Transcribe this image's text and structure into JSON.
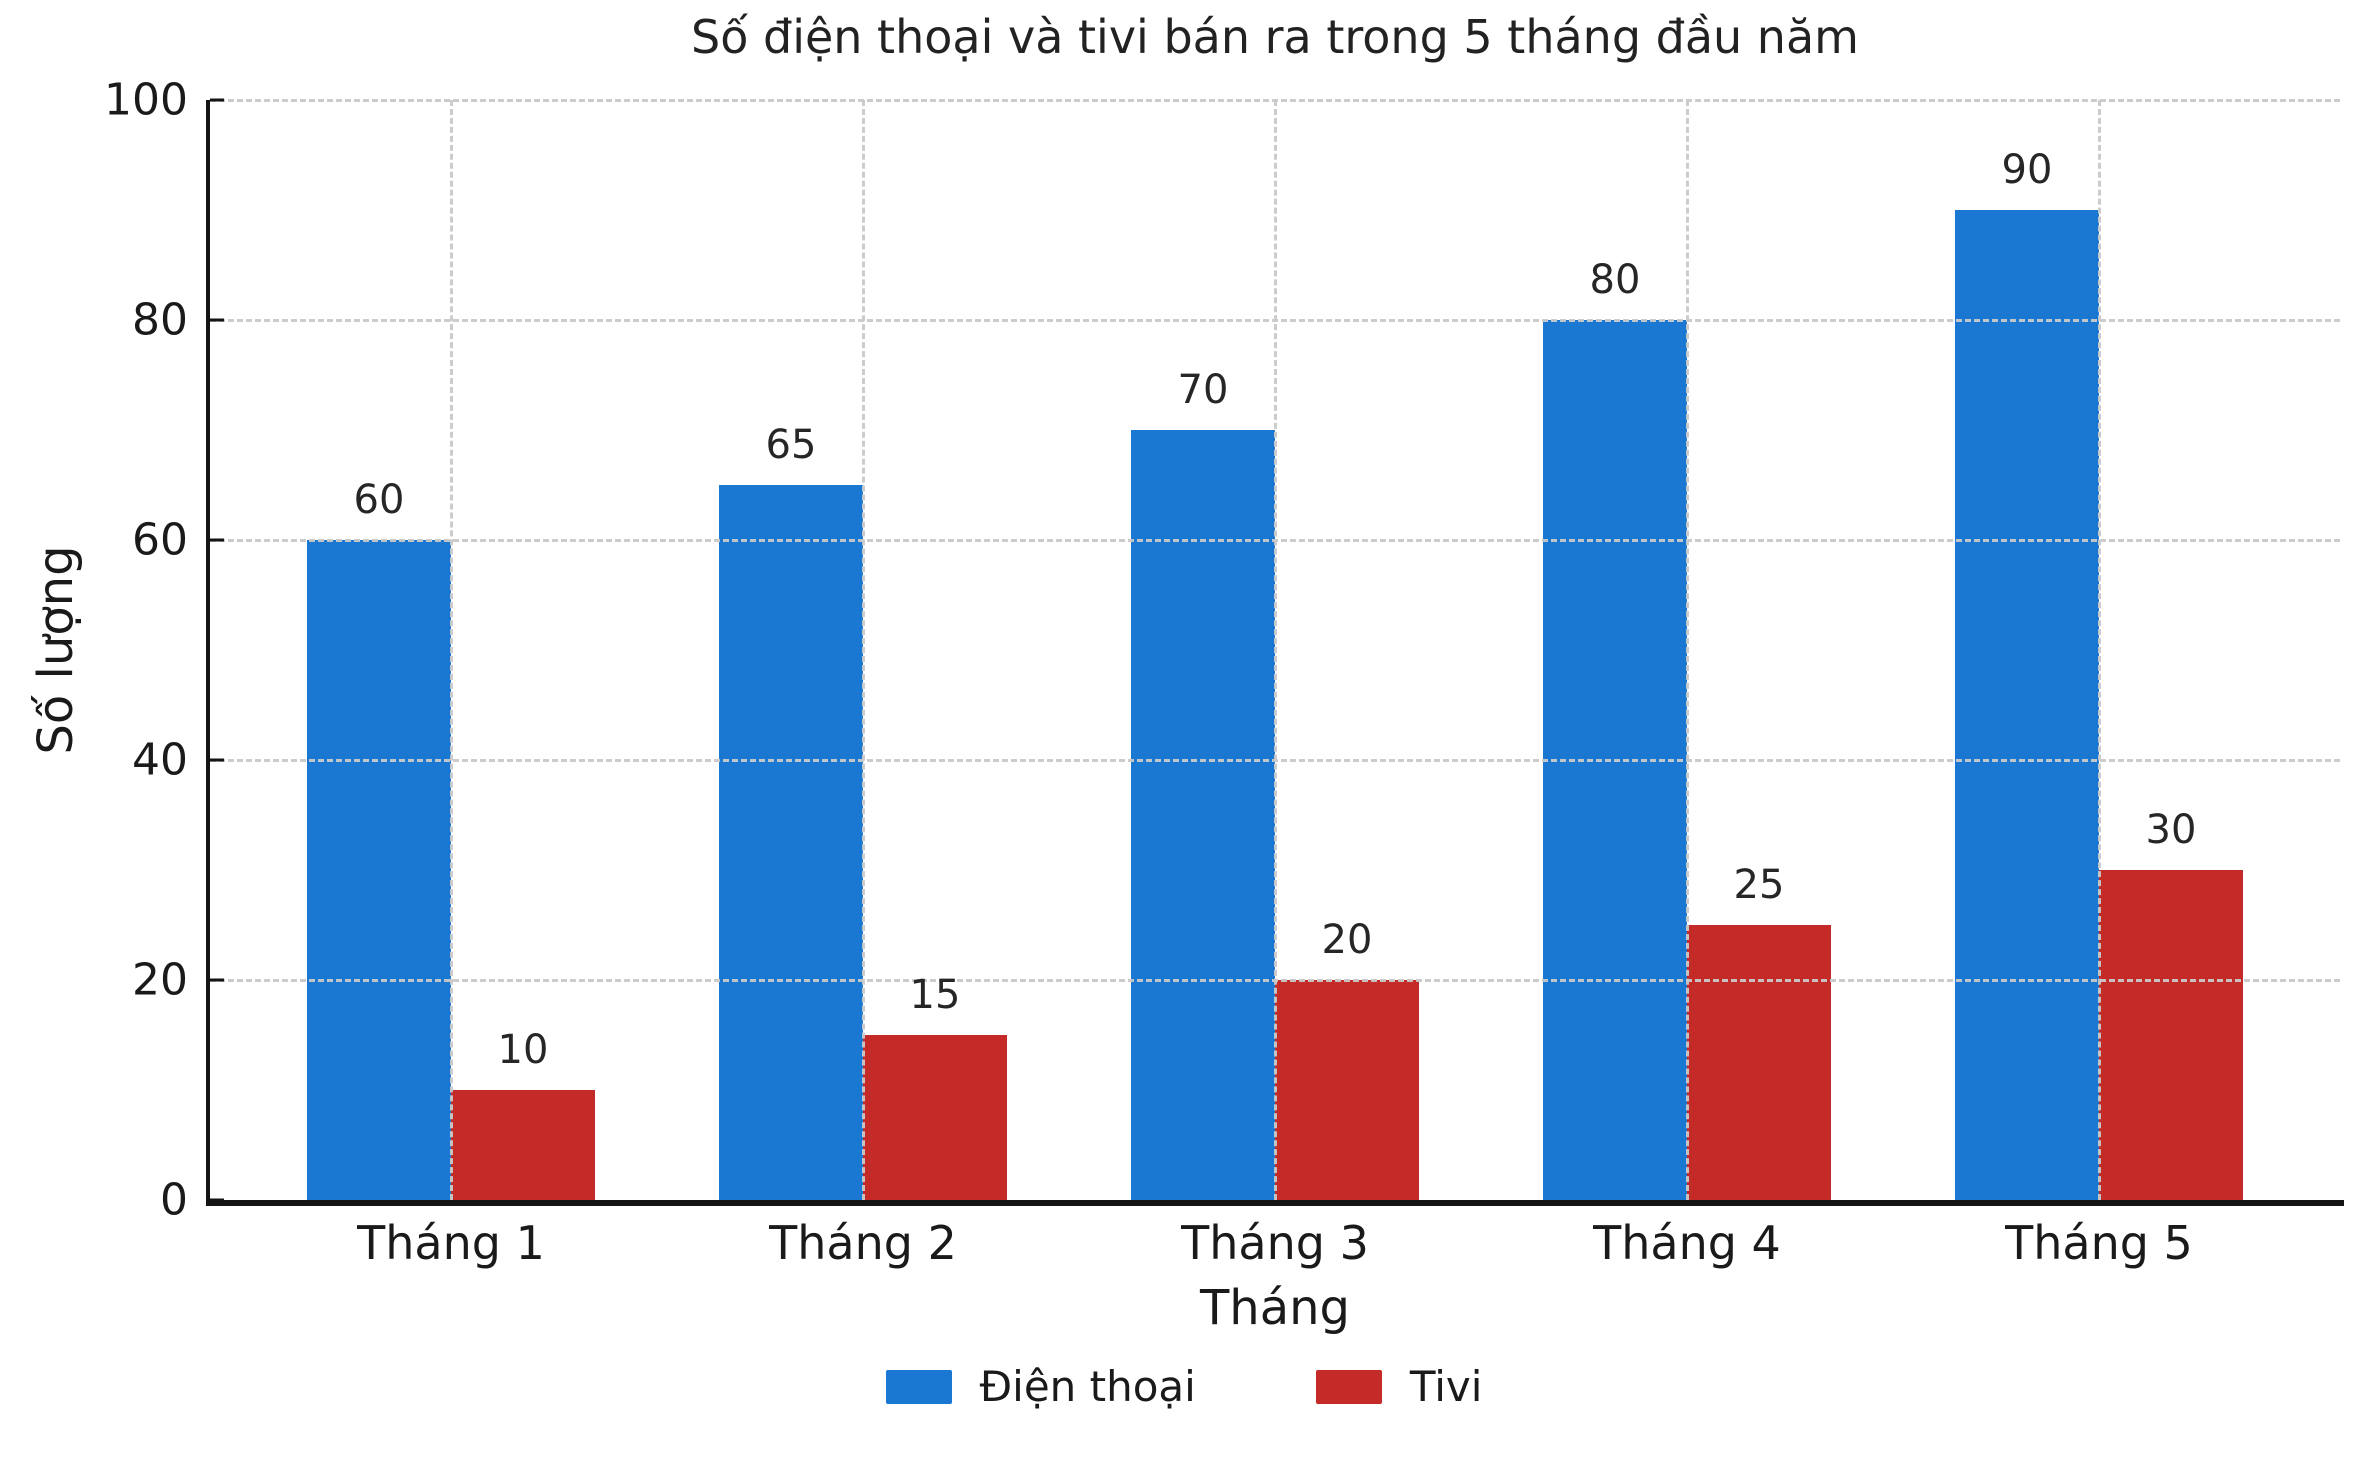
{
  "chart_data": {
    "type": "bar",
    "title": "Số điện thoại và tivi bán ra trong 5 tháng đầu năm",
    "xlabel": "Tháng",
    "ylabel": "Số lượng",
    "categories": [
      "Tháng 1",
      "Tháng 2",
      "Tháng 3",
      "Tháng 4",
      "Tháng 5"
    ],
    "series": [
      {
        "name": "Điện thoại",
        "color": "#1a78d2",
        "values": [
          60,
          65,
          70,
          80,
          90
        ]
      },
      {
        "name": "Tivi",
        "color": "#c32a28",
        "values": [
          10,
          15,
          20,
          25,
          30
        ]
      }
    ],
    "ylim": [
      0,
      100
    ],
    "yticks": [
      0,
      20,
      40,
      60,
      80,
      100
    ],
    "grid": "both-dashed-over-bars",
    "bar_value_labels": true,
    "legend_position": "bottom-center"
  },
  "colors": {
    "text": "#1a1a1a",
    "grid": "#c9c9c9",
    "axis": "#141414",
    "background": "#ffffff"
  }
}
